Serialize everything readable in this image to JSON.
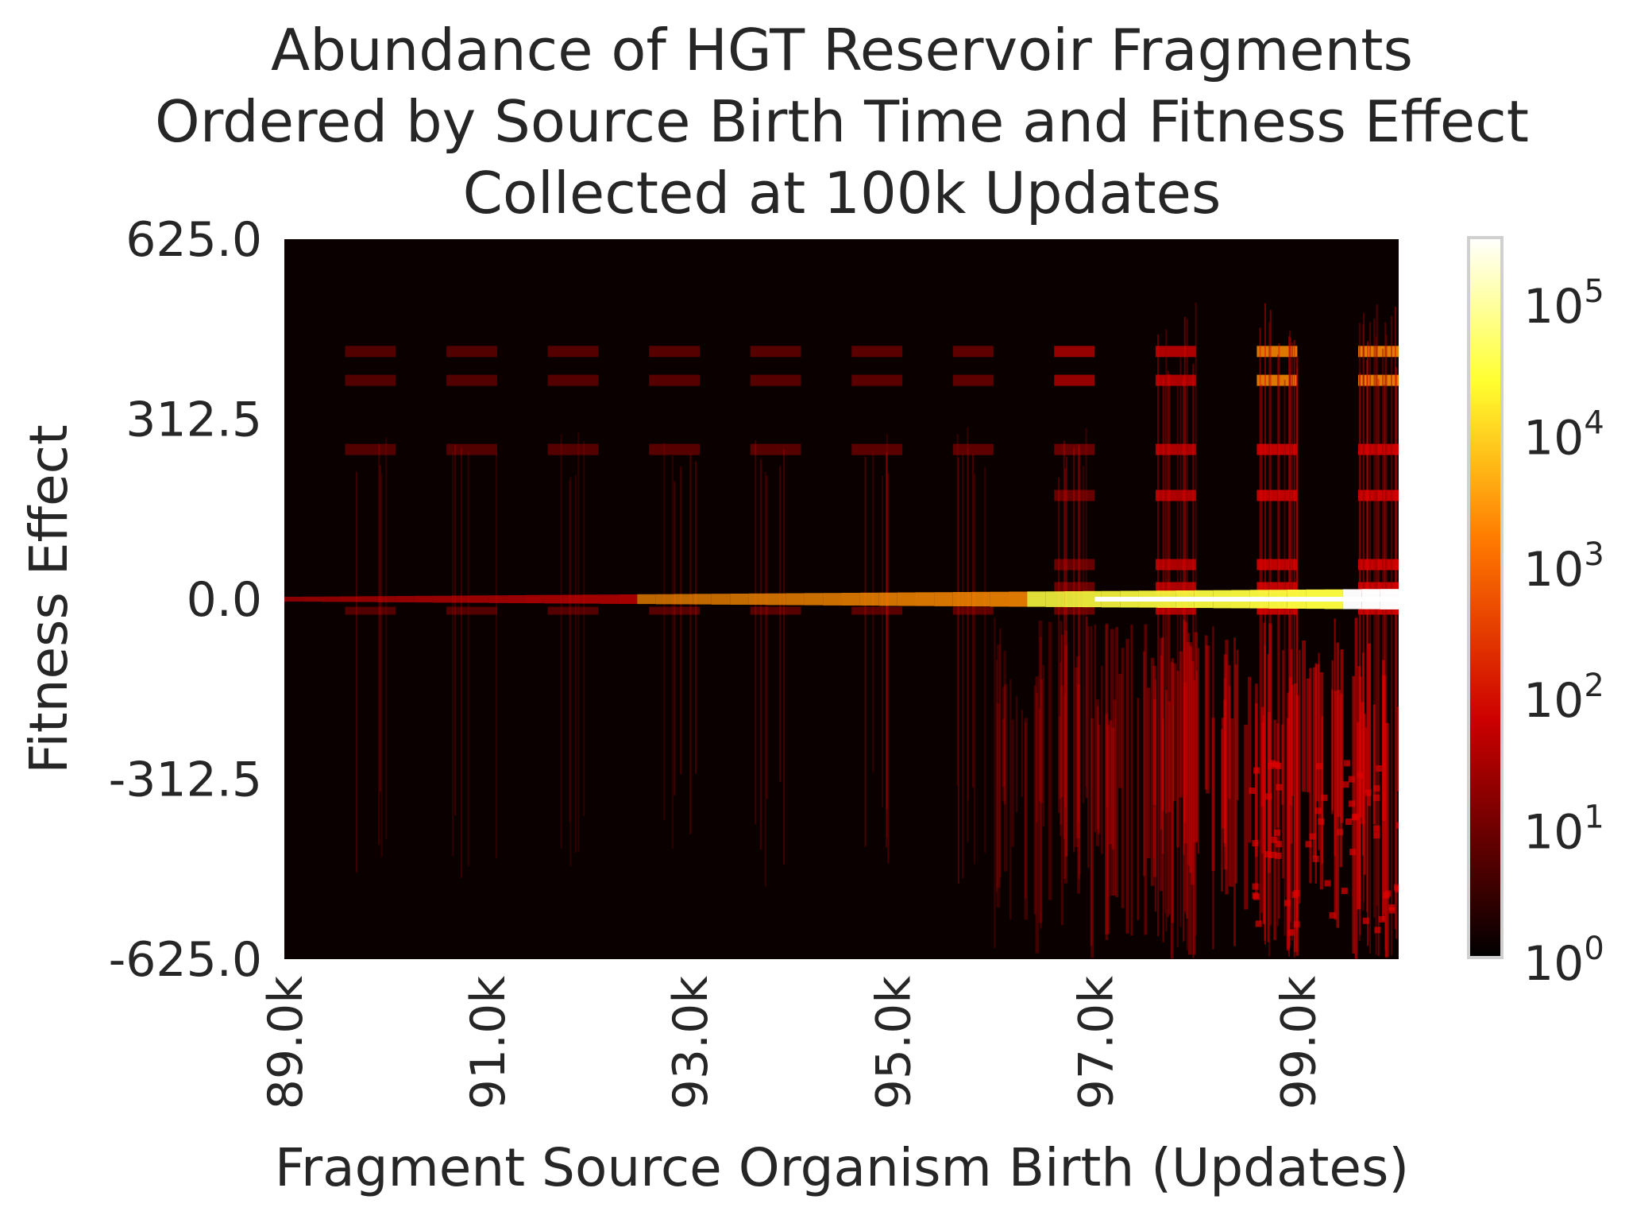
{
  "chart_data": {
    "type": "heatmap",
    "title_lines": [
      "Abundance of HGT Reservoir Fragments",
      "Ordered by Source Birth Time and Fitness Effect",
      "Collected at 100k Updates"
    ],
    "xlabel": "Fragment Source Organism Birth (Updates)",
    "ylabel": "Fitness Effect",
    "xlim": [
      89000,
      100000
    ],
    "ylim": [
      -625.0,
      625.0
    ],
    "x_ticks": [
      {
        "value": 89000,
        "label": "89.0k"
      },
      {
        "value": 91000,
        "label": "91.0k"
      },
      {
        "value": 93000,
        "label": "93.0k"
      },
      {
        "value": 95000,
        "label": "95.0k"
      },
      {
        "value": 97000,
        "label": "97.0k"
      },
      {
        "value": 99000,
        "label": "99.0k"
      }
    ],
    "y_ticks": [
      {
        "value": 625.0,
        "label": "625.0"
      },
      {
        "value": 312.5,
        "label": "312.5"
      },
      {
        "value": 0.0,
        "label": "0.0"
      },
      {
        "value": -312.5,
        "label": "-312.5"
      },
      {
        "value": -625.0,
        "label": "-625.0"
      }
    ],
    "colorbar": {
      "scale": "log",
      "colormap": "hot",
      "range": [
        1,
        300000
      ],
      "ticks": [
        {
          "value": 1,
          "base": "10",
          "exp": "0"
        },
        {
          "value": 10,
          "base": "10",
          "exp": "1"
        },
        {
          "value": 100,
          "base": "10",
          "exp": "2"
        },
        {
          "value": 1000,
          "base": "10",
          "exp": "3"
        },
        {
          "value": 10000,
          "base": "10",
          "exp": "4"
        },
        {
          "value": 100000,
          "base": "10",
          "exp": "5"
        }
      ]
    },
    "grid": false,
    "features": {
      "baseline_band": {
        "fitness_effect": 0.0,
        "start_update": 89000,
        "peak_count": 30000
      },
      "cohort_columns": [
        {
          "start": 89600,
          "end": 90100,
          "intensity": 0.25
        },
        {
          "start": 90600,
          "end": 91100,
          "intensity": 0.25
        },
        {
          "start": 91600,
          "end": 92100,
          "intensity": 0.28
        },
        {
          "start": 92600,
          "end": 93100,
          "intensity": 0.3
        },
        {
          "start": 93600,
          "end": 94100,
          "intensity": 0.32
        },
        {
          "start": 94600,
          "end": 95100,
          "intensity": 0.35
        },
        {
          "start": 95600,
          "end": 96000,
          "intensity": 0.4
        },
        {
          "start": 96600,
          "end": 97000,
          "intensity": 0.5
        },
        {
          "start": 97600,
          "end": 98000,
          "intensity": 0.7
        },
        {
          "start": 98600,
          "end": 99000,
          "intensity": 0.85
        },
        {
          "start": 99600,
          "end": 100000,
          "intensity": 0.9
        }
      ],
      "bright_bands_fitness": [
        430,
        380,
        260,
        180,
        60,
        20,
        -20
      ]
    },
    "colors": {
      "background": "#0a0000",
      "dark_red": "#5a0000",
      "red": "#e00000",
      "orange": "#ff8c00",
      "yellow": "#ffff40",
      "white": "#ffffff"
    }
  }
}
